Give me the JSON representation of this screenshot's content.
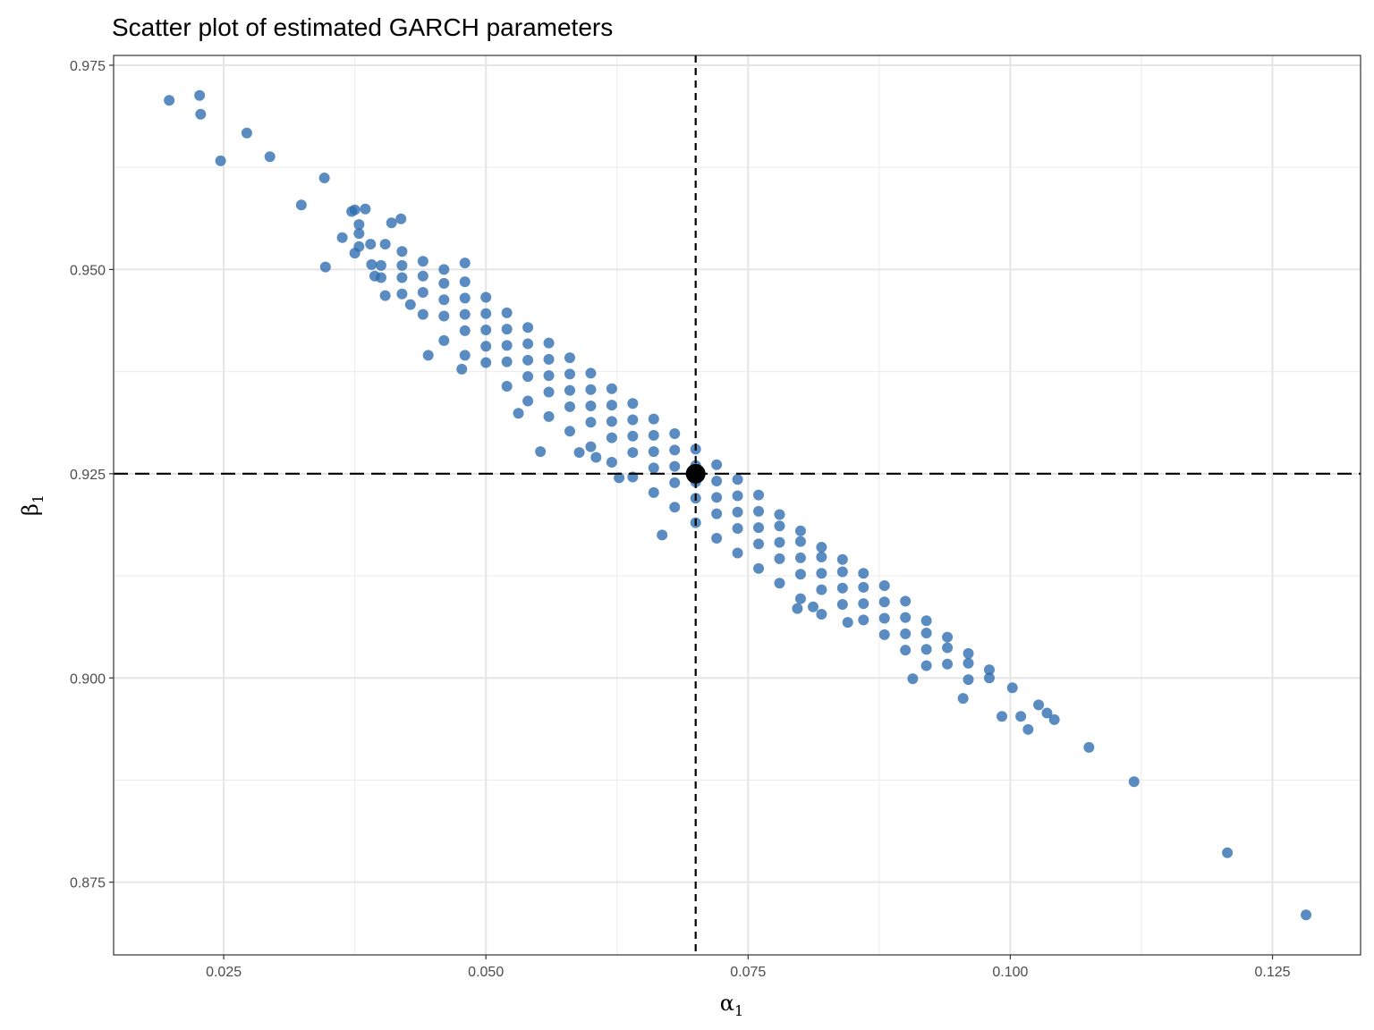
{
  "chart_data": {
    "type": "scatter",
    "title": "Scatter plot of estimated GARCH parameters",
    "xlabel": "α",
    "xlabel_sub": "1",
    "ylabel": "β",
    "ylabel_sub": "1",
    "xlim": [
      0.0145,
      0.1334
    ],
    "ylim": [
      0.8661,
      0.9762
    ],
    "x_ticks": [
      0.025,
      0.05,
      0.075,
      0.1,
      0.125
    ],
    "x_tick_labels": [
      "0.025",
      "0.050",
      "0.075",
      "0.100",
      "0.125"
    ],
    "y_ticks": [
      0.875,
      0.9,
      0.925,
      0.95,
      0.975
    ],
    "y_tick_labels": [
      "0.875",
      "0.900",
      "0.925",
      "0.950",
      "0.975"
    ],
    "grid": true,
    "point_color": "#2b6cb0",
    "reference_point": {
      "x": 0.07,
      "y": 0.925,
      "color": "#000000"
    },
    "reference_lines": {
      "vertical_x": 0.07,
      "horizontal_y": 0.925,
      "style": "dashed"
    },
    "points": [
      [
        0.0198,
        0.9707
      ],
      [
        0.0227,
        0.9713
      ],
      [
        0.0228,
        0.969
      ],
      [
        0.0247,
        0.9633
      ],
      [
        0.0272,
        0.9667
      ],
      [
        0.0294,
        0.9638
      ],
      [
        0.0346,
        0.9612
      ],
      [
        0.0324,
        0.9579
      ],
      [
        0.0347,
        0.9503
      ],
      [
        0.0363,
        0.9539
      ],
      [
        0.0372,
        0.9571
      ],
      [
        0.0375,
        0.9573
      ],
      [
        0.0385,
        0.9574
      ],
      [
        0.0379,
        0.9555
      ],
      [
        0.0379,
        0.9544
      ],
      [
        0.0379,
        0.9528
      ],
      [
        0.0375,
        0.952
      ],
      [
        0.039,
        0.9531
      ],
      [
        0.0404,
        0.9531
      ],
      [
        0.041,
        0.9557
      ],
      [
        0.0419,
        0.9562
      ],
      [
        0.042,
        0.9522
      ],
      [
        0.0391,
        0.9506
      ],
      [
        0.0394,
        0.9492
      ],
      [
        0.0404,
        0.9468
      ],
      [
        0.0428,
        0.9457
      ],
      [
        0.048,
        0.9508
      ],
      [
        0.0445,
        0.9395
      ],
      [
        0.0477,
        0.9378
      ],
      [
        0.0531,
        0.9324
      ],
      [
        0.0552,
        0.9277
      ],
      [
        0.0589,
        0.9276
      ],
      [
        0.0605,
        0.927
      ],
      [
        0.0627,
        0.9245
      ],
      [
        0.0668,
        0.9175
      ],
      [
        0.0797,
        0.9085
      ],
      [
        0.0812,
        0.9087
      ],
      [
        0.0845,
        0.9068
      ],
      [
        0.0907,
        0.8999
      ],
      [
        0.0955,
        0.8975
      ],
      [
        0.0992,
        0.8953
      ],
      [
        0.1002,
        0.8988
      ],
      [
        0.101,
        0.8953
      ],
      [
        0.1017,
        0.8937
      ],
      [
        0.1027,
        0.8967
      ],
      [
        0.1035,
        0.8957
      ],
      [
        0.1042,
        0.8949
      ],
      [
        0.1075,
        0.8915
      ],
      [
        0.1118,
        0.8873
      ],
      [
        0.1207,
        0.8786
      ],
      [
        0.1282,
        0.871
      ],
      [
        0.04,
        0.9505
      ],
      [
        0.04,
        0.949
      ],
      [
        0.042,
        0.9505
      ],
      [
        0.042,
        0.949
      ],
      [
        0.042,
        0.947
      ],
      [
        0.044,
        0.951
      ],
      [
        0.044,
        0.9492
      ],
      [
        0.044,
        0.9472
      ],
      [
        0.044,
        0.9445
      ],
      [
        0.046,
        0.95
      ],
      [
        0.046,
        0.9483
      ],
      [
        0.046,
        0.9463
      ],
      [
        0.046,
        0.9443
      ],
      [
        0.046,
        0.9413
      ],
      [
        0.048,
        0.9485
      ],
      [
        0.048,
        0.9465
      ],
      [
        0.048,
        0.9445
      ],
      [
        0.048,
        0.9425
      ],
      [
        0.048,
        0.9395
      ],
      [
        0.05,
        0.9466
      ],
      [
        0.05,
        0.9446
      ],
      [
        0.05,
        0.9426
      ],
      [
        0.05,
        0.9406
      ],
      [
        0.05,
        0.9386
      ],
      [
        0.052,
        0.9447
      ],
      [
        0.052,
        0.9427
      ],
      [
        0.052,
        0.9407
      ],
      [
        0.052,
        0.9387
      ],
      [
        0.052,
        0.9357
      ],
      [
        0.054,
        0.9429
      ],
      [
        0.054,
        0.9409
      ],
      [
        0.054,
        0.9389
      ],
      [
        0.054,
        0.9369
      ],
      [
        0.054,
        0.9339
      ],
      [
        0.056,
        0.941
      ],
      [
        0.056,
        0.939
      ],
      [
        0.056,
        0.937
      ],
      [
        0.056,
        0.935
      ],
      [
        0.056,
        0.932
      ],
      [
        0.058,
        0.9392
      ],
      [
        0.058,
        0.9372
      ],
      [
        0.058,
        0.9352
      ],
      [
        0.058,
        0.9332
      ],
      [
        0.058,
        0.9302
      ],
      [
        0.06,
        0.9373
      ],
      [
        0.06,
        0.9353
      ],
      [
        0.06,
        0.9333
      ],
      [
        0.06,
        0.9313
      ],
      [
        0.06,
        0.9283
      ],
      [
        0.062,
        0.9354
      ],
      [
        0.062,
        0.9334
      ],
      [
        0.062,
        0.9314
      ],
      [
        0.062,
        0.9294
      ],
      [
        0.062,
        0.9264
      ],
      [
        0.064,
        0.9336
      ],
      [
        0.064,
        0.9316
      ],
      [
        0.064,
        0.9296
      ],
      [
        0.064,
        0.9276
      ],
      [
        0.064,
        0.9246
      ],
      [
        0.066,
        0.9317
      ],
      [
        0.066,
        0.9297
      ],
      [
        0.066,
        0.9277
      ],
      [
        0.066,
        0.9257
      ],
      [
        0.066,
        0.9227
      ],
      [
        0.068,
        0.9299
      ],
      [
        0.068,
        0.9279
      ],
      [
        0.068,
        0.9259
      ],
      [
        0.068,
        0.9239
      ],
      [
        0.068,
        0.9209
      ],
      [
        0.07,
        0.928
      ],
      [
        0.07,
        0.926
      ],
      [
        0.07,
        0.924
      ],
      [
        0.07,
        0.922
      ],
      [
        0.07,
        0.919
      ],
      [
        0.072,
        0.9261
      ],
      [
        0.072,
        0.9241
      ],
      [
        0.072,
        0.9221
      ],
      [
        0.072,
        0.9201
      ],
      [
        0.072,
        0.9171
      ],
      [
        0.074,
        0.9243
      ],
      [
        0.074,
        0.9223
      ],
      [
        0.074,
        0.9203
      ],
      [
        0.074,
        0.9183
      ],
      [
        0.074,
        0.9153
      ],
      [
        0.076,
        0.9224
      ],
      [
        0.076,
        0.9204
      ],
      [
        0.076,
        0.9184
      ],
      [
        0.076,
        0.9164
      ],
      [
        0.076,
        0.9134
      ],
      [
        0.078,
        0.92
      ],
      [
        0.078,
        0.9186
      ],
      [
        0.078,
        0.9166
      ],
      [
        0.078,
        0.9146
      ],
      [
        0.078,
        0.9116
      ],
      [
        0.08,
        0.918
      ],
      [
        0.08,
        0.9167
      ],
      [
        0.08,
        0.9147
      ],
      [
        0.08,
        0.9127
      ],
      [
        0.08,
        0.9097
      ],
      [
        0.082,
        0.916
      ],
      [
        0.082,
        0.9148
      ],
      [
        0.082,
        0.9128
      ],
      [
        0.082,
        0.9108
      ],
      [
        0.082,
        0.9078
      ],
      [
        0.084,
        0.9145
      ],
      [
        0.084,
        0.913
      ],
      [
        0.084,
        0.911
      ],
      [
        0.084,
        0.909
      ],
      [
        0.086,
        0.9128
      ],
      [
        0.086,
        0.9111
      ],
      [
        0.086,
        0.9091
      ],
      [
        0.086,
        0.9071
      ],
      [
        0.088,
        0.9113
      ],
      [
        0.088,
        0.9093
      ],
      [
        0.088,
        0.9073
      ],
      [
        0.088,
        0.9053
      ],
      [
        0.09,
        0.9094
      ],
      [
        0.09,
        0.9074
      ],
      [
        0.09,
        0.9054
      ],
      [
        0.09,
        0.9034
      ],
      [
        0.092,
        0.907
      ],
      [
        0.092,
        0.9055
      ],
      [
        0.092,
        0.9035
      ],
      [
        0.092,
        0.9015
      ],
      [
        0.094,
        0.905
      ],
      [
        0.094,
        0.9037
      ],
      [
        0.094,
        0.9017
      ],
      [
        0.096,
        0.903
      ],
      [
        0.096,
        0.9018
      ],
      [
        0.096,
        0.8998
      ],
      [
        0.098,
        0.901
      ],
      [
        0.098,
        0.9
      ]
    ]
  }
}
